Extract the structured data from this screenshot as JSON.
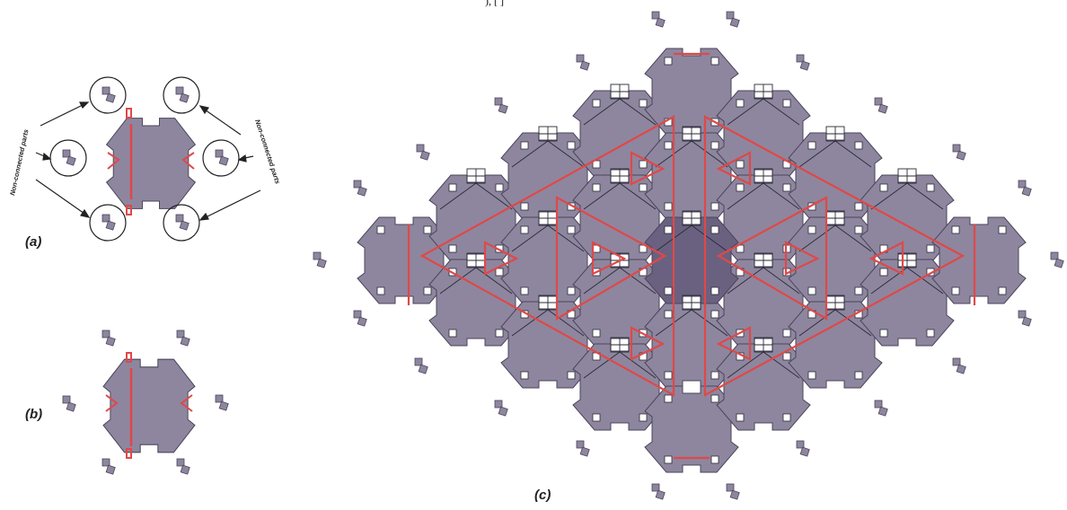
{
  "figure": {
    "top_fragment": "), [ ]",
    "panels": [
      {
        "id": "a",
        "label": "(a)"
      },
      {
        "id": "b",
        "label": "(b)"
      },
      {
        "id": "c",
        "label": "(c)"
      }
    ],
    "annotation_left": "Non-connected parts",
    "annotation_right": "Non-connected parts",
    "colors": {
      "tile_fill": "#8e869f",
      "tile_dark": "#6a6181",
      "tile_stroke": "#4a4458",
      "seam": "#e04848",
      "connector": "#ffffff",
      "lattice": "#2a2a35"
    }
  }
}
